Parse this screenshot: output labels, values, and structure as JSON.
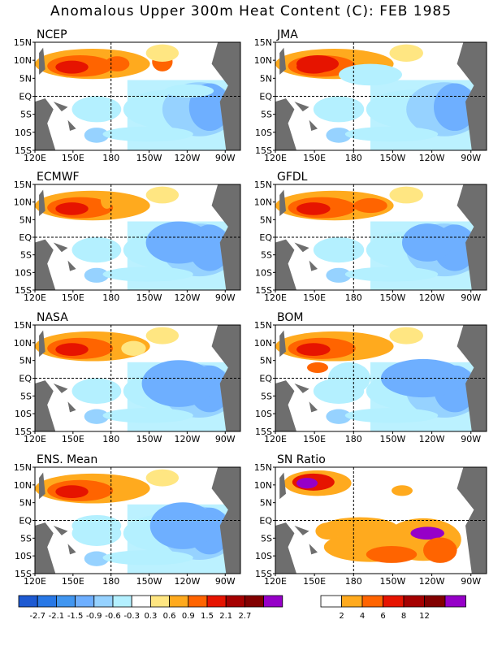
{
  "title": "Anomalous Upper 300m Heat Content (C): FEB 1985",
  "lat_labels": [
    "15N",
    "10N",
    "5N",
    "EQ",
    "5S",
    "10S",
    "15S"
  ],
  "lon_labels": [
    "120E",
    "150E",
    "180",
    "150W",
    "120W",
    "90W"
  ],
  "panels": [
    {
      "label": "NCEP"
    },
    {
      "label": "JMA"
    },
    {
      "label": "ECMWF"
    },
    {
      "label": "GFDL"
    },
    {
      "label": "NASA"
    },
    {
      "label": "BOM"
    },
    {
      "label": "ENS. Mean"
    },
    {
      "label": "SN Ratio"
    }
  ],
  "colorbar_anomaly": {
    "labels": [
      "-2.7",
      "-2.1",
      "-1.5",
      "-0.9",
      "-0.6",
      "-0.3",
      "0.3",
      "0.6",
      "0.9",
      "1.5",
      "2.1",
      "2.7"
    ],
    "colors": [
      "#1e5ad2",
      "#2878e6",
      "#4196f0",
      "#6eafff",
      "#96d2ff",
      "#b4f0ff",
      "#ffffff",
      "#ffe682",
      "#ffaa1e",
      "#ff6400",
      "#e61400",
      "#a50000",
      "#820000",
      "#9600c8"
    ]
  },
  "colorbar_sn": {
    "labels": [
      "2",
      "4",
      "6",
      "8",
      "12"
    ],
    "colors": [
      "#ffffff",
      "#ffaa1e",
      "#ff6400",
      "#e61400",
      "#a50000",
      "#820000",
      "#9600c8"
    ]
  }
}
